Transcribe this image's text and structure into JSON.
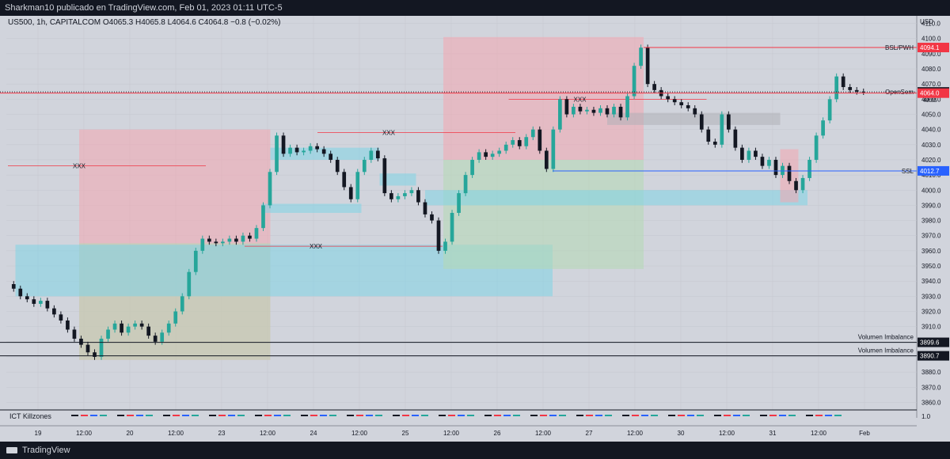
{
  "header": {
    "publisher": "Sharkman10 publicado en TradingView.com, Feb 01, 2023 01:11 UTC-5"
  },
  "legend": {
    "symbol": "US500, 1h, CAPITALCOM",
    "ohlc": "O4065.3 H4065.8 L4064.6 C4064.8 −0.8 (−0.02%)"
  },
  "footer": {
    "brand": "TradingView"
  },
  "chart_data": {
    "type": "candlestick",
    "currency": "USD",
    "ylim": [
      3855,
      4115
    ],
    "yticks": [
      3860,
      3870,
      3880,
      3890,
      3900,
      3910,
      3920,
      3930,
      3940,
      3950,
      3960,
      3970,
      3980,
      3990,
      4000,
      4010,
      4020,
      4030,
      4040,
      4050,
      4060,
      4070,
      4080,
      4090,
      4100,
      4110
    ],
    "xticks": [
      "19",
      "12:00",
      "20",
      "12:00",
      "23",
      "12:00",
      "24",
      "12:00",
      "25",
      "12:00",
      "26",
      "12:00",
      "27",
      "12:00",
      "30",
      "12:00",
      "31",
      "12:00",
      "Feb"
    ],
    "closes": [
      3935,
      3930,
      3928,
      3925,
      3927,
      3922,
      3918,
      3914,
      3908,
      3902,
      3898,
      3893,
      3890,
      3902,
      3908,
      3912,
      3906,
      3910,
      3912,
      3910,
      3904,
      3900,
      3906,
      3912,
      3920,
      3930,
      3946,
      3960,
      3968,
      3966,
      3965,
      3966,
      3968,
      3966,
      3970,
      3968,
      3975,
      3990,
      4012,
      4036,
      4024,
      4028,
      4025,
      4026,
      4029,
      4027,
      4024,
      4020,
      4012,
      4002,
      3994,
      4012,
      4020,
      4026,
      4021,
      3998,
      3994,
      3996,
      3998,
      4000,
      3992,
      3984,
      3980,
      3960,
      3966,
      3985,
      3998,
      4010,
      4020,
      4025,
      4022,
      4024,
      4026,
      4030,
      4033,
      4029,
      4035,
      4040,
      4026,
      4014,
      4040,
      4060,
      4050,
      4055,
      4052,
      4053,
      4051,
      4054,
      4050,
      4055,
      4048,
      4062,
      4082,
      4094,
      4070,
      4066,
      4062,
      4060,
      4058,
      4056,
      4054,
      4050,
      4040,
      4032,
      4030,
      4050,
      4040,
      4028,
      4020,
      4026,
      4022,
      4016,
      4020,
      4010,
      4016,
      4006,
      4000,
      4008,
      4020,
      4036,
      4046,
      4060,
      4075,
      4068,
      4066,
      4065,
      4064.8
    ],
    "zones": [
      {
        "color": "#f4a6b0",
        "x": [
          0.08,
          0.29
        ],
        "y": [
          3888,
          4040
        ]
      },
      {
        "color": "#b5d8b5",
        "x": [
          0.08,
          0.29
        ],
        "y": [
          3888,
          3965
        ]
      },
      {
        "color": "#7fd3e6",
        "x": [
          0.01,
          0.6
        ],
        "y": [
          3930,
          3964
        ]
      },
      {
        "color": "#7fd3e6",
        "x": [
          0.29,
          0.41
        ],
        "y": [
          4020,
          4028
        ]
      },
      {
        "color": "#7fd3e6",
        "x": [
          0.28,
          0.39
        ],
        "y": [
          3985,
          3991
        ]
      },
      {
        "color": "#7fd3e6",
        "x": [
          0.41,
          0.45
        ],
        "y": [
          4003,
          4011
        ]
      },
      {
        "color": "#f4a6b0",
        "x": [
          0.48,
          0.7
        ],
        "y": [
          4020,
          4101
        ]
      },
      {
        "color": "#b5d8b5",
        "x": [
          0.48,
          0.7
        ],
        "y": [
          3948,
          4020
        ]
      },
      {
        "color": "#7fd3e6",
        "x": [
          0.46,
          0.88
        ],
        "y": [
          3990,
          4000
        ]
      },
      {
        "color": "#b0b0b8",
        "x": [
          0.66,
          0.85
        ],
        "y": [
          4043,
          4051
        ]
      },
      {
        "color": "#f4a6b0",
        "x": [
          0.85,
          0.87
        ],
        "y": [
          3992,
          4027
        ]
      }
    ],
    "levels": [
      {
        "price": 4094.1,
        "label": "BSL/PWH",
        "tag": "4094.1",
        "color": "#f23645"
      },
      {
        "price": 4064.8,
        "label": "OpenSem",
        "tag": "4064.8",
        "color": "#131722"
      },
      {
        "price": 4064.0,
        "label": "",
        "tag": "4064.0",
        "color": "#f23645"
      },
      {
        "price": 4012.7,
        "label": "SSL",
        "tag": "4012.7",
        "color": "#2962ff"
      },
      {
        "price": 3899.6,
        "label": "Volumen Imbalance",
        "tag": "3899.6",
        "color": "#131722"
      },
      {
        "price": 3890.7,
        "label": "Volumen Imbalance",
        "tag": "3890.7",
        "color": "#131722"
      }
    ],
    "countdown": "48:35",
    "annotations": [
      {
        "text": "XXX",
        "price": 4038,
        "x": 0.42
      },
      {
        "text": "XXX",
        "price": 4016,
        "x": 0.08
      },
      {
        "text": "XXX",
        "price": 3963,
        "x": 0.34
      },
      {
        "text": "XXX",
        "price": 4060,
        "x": 0.63
      }
    ],
    "indicator": {
      "name": "ICT Killzones",
      "value": "1.0"
    }
  }
}
